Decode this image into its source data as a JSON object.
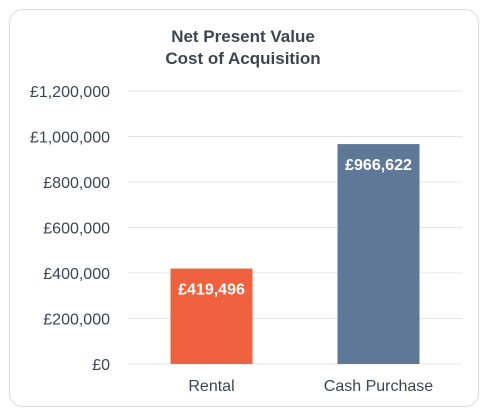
{
  "chart_data": {
    "type": "bar",
    "title": "Net Present Value",
    "subtitle": "Cost of Acquisition",
    "categories": [
      "Rental",
      "Cash Purchase"
    ],
    "values": [
      419496,
      966622
    ],
    "data_labels": [
      "£419,496",
      "£966,622"
    ],
    "ylim": [
      0,
      1200000
    ],
    "yticks": [
      0,
      200000,
      400000,
      600000,
      800000,
      1000000,
      1200000
    ],
    "ytick_labels": [
      "£0",
      "£200,000",
      "£400,000",
      "£600,000",
      "£800,000",
      "£1,000,000",
      "£1,200,000"
    ],
    "grid": true,
    "legend": "none",
    "bar_colors": [
      "#f0623f",
      "#5f7898"
    ]
  },
  "colors": {
    "text": "#3d4650",
    "grid": "#e4e4e4",
    "card_border": "#dcdcdc"
  }
}
